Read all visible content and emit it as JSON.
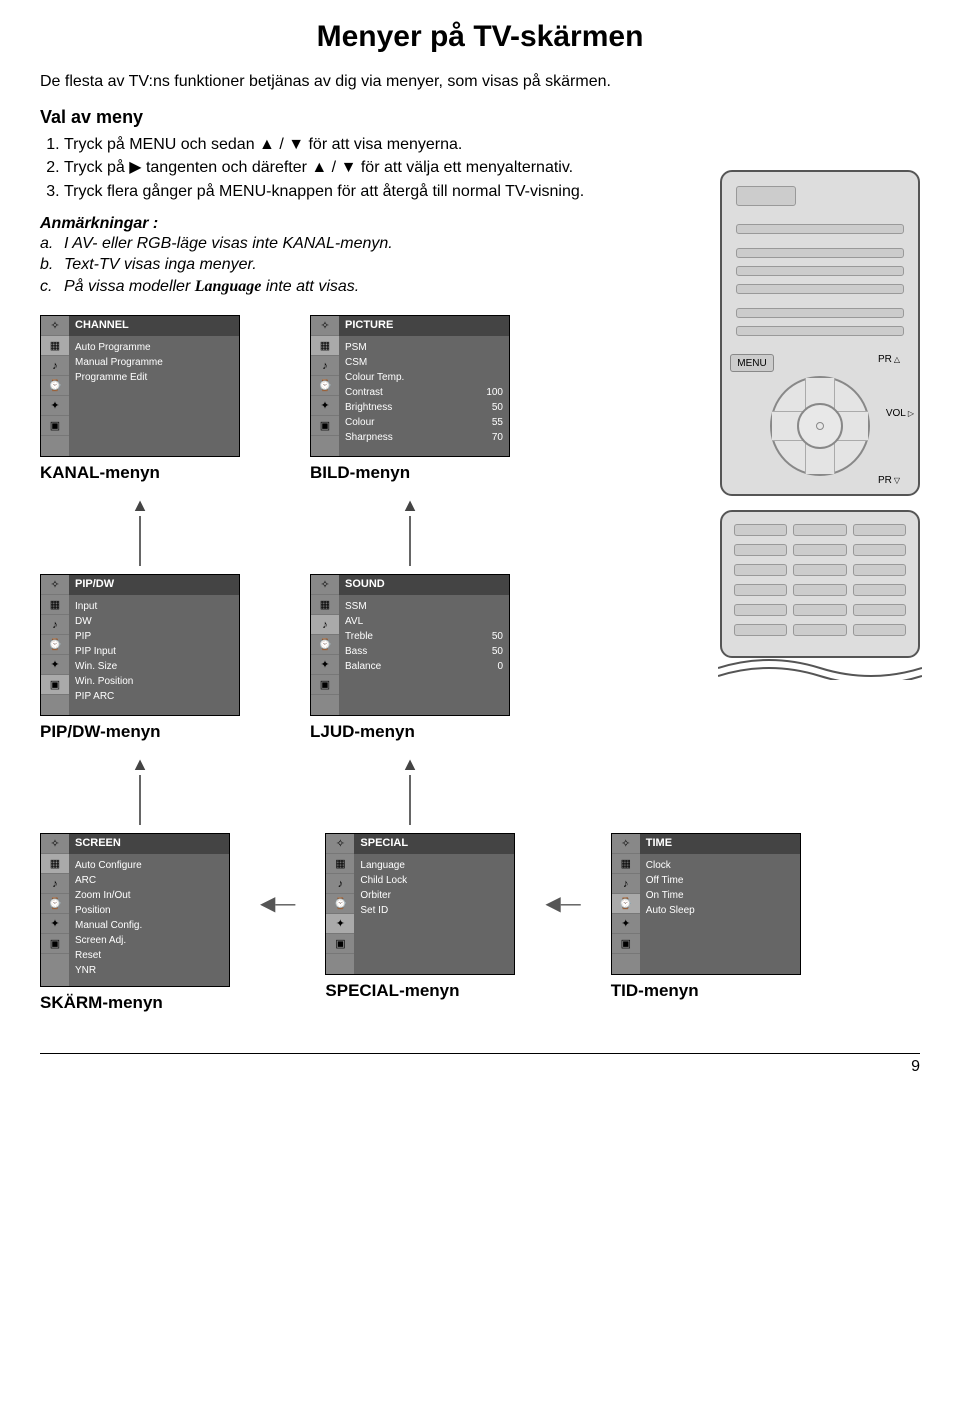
{
  "title": "Menyer på TV-skärmen",
  "intro": "De flesta av TV:ns funktioner betjänas av dig via menyer, som visas på skärmen.",
  "section_heading": "Val av meny",
  "steps": [
    "Tryck på MENU och sedan ▲ / ▼ för att visa menyerna.",
    "Tryck på ▶ tangenten och därefter ▲ / ▼ för att välja ett menyalternativ.",
    "Tryck flera gånger på MENU-knappen för att återgå till normal TV-visning."
  ],
  "notes_heading": "Anmärkningar :",
  "notes": [
    {
      "m": "a.",
      "t": "I AV- eller RGB-läge visas inte KANAL-menyn."
    },
    {
      "m": "b.",
      "t": "Text-TV visas inga menyer."
    },
    {
      "m": "c.",
      "t_pre": "På vissa modeller ",
      "t_em": "Language",
      "t_post": " inte att visas."
    }
  ],
  "menus": {
    "channel": {
      "head": "CHANNEL",
      "items": [
        {
          "l": "Auto Programme"
        },
        {
          "l": "Manual Programme"
        },
        {
          "l": "Programme Edit"
        }
      ],
      "name": "KANAL-menyn"
    },
    "picture": {
      "head": "PICTURE",
      "items": [
        {
          "l": "PSM"
        },
        {
          "l": "CSM"
        },
        {
          "l": "Colour Temp."
        },
        {
          "l": "Contrast",
          "v": "100"
        },
        {
          "l": "Brightness",
          "v": "50"
        },
        {
          "l": "Colour",
          "v": "55"
        },
        {
          "l": "Sharpness",
          "v": "70"
        }
      ],
      "name": "BILD-menyn"
    },
    "pipdw": {
      "head": "PIP/DW",
      "items": [
        {
          "l": "Input"
        },
        {
          "l": "DW"
        },
        {
          "l": "PIP"
        },
        {
          "l": "PIP Input"
        },
        {
          "l": "Win. Size"
        },
        {
          "l": "Win. Position"
        },
        {
          "l": "PIP ARC"
        }
      ],
      "name": "PIP/DW-menyn"
    },
    "sound": {
      "head": "SOUND",
      "items": [
        {
          "l": "SSM"
        },
        {
          "l": "AVL"
        },
        {
          "l": "Treble",
          "v": "50"
        },
        {
          "l": "Bass",
          "v": "50"
        },
        {
          "l": "Balance",
          "v": "0"
        }
      ],
      "name": "LJUD-menyn"
    },
    "screen": {
      "head": "SCREEN",
      "items": [
        {
          "l": "Auto Configure"
        },
        {
          "l": "ARC"
        },
        {
          "l": "Zoom In/Out"
        },
        {
          "l": "Position"
        },
        {
          "l": "Manual Config."
        },
        {
          "l": "Screen Adj."
        },
        {
          "l": "Reset"
        },
        {
          "l": "YNR"
        }
      ],
      "name": "SKÄRM-menyn"
    },
    "special": {
      "head": "SPECIAL",
      "items": [
        {
          "l": "Language"
        },
        {
          "l": "Child Lock"
        },
        {
          "l": "Orbiter"
        },
        {
          "l": "Set ID"
        }
      ],
      "name": "SPECIAL-menyn"
    },
    "time": {
      "head": "TIME",
      "items": [
        {
          "l": "Clock"
        },
        {
          "l": "Off Time"
        },
        {
          "l": "On Time"
        },
        {
          "l": "Auto Sleep"
        }
      ],
      "name": "TID-menyn"
    }
  },
  "remote": {
    "menu": "MENU",
    "pr": "PR",
    "vol": "VOL"
  },
  "icon_glyphs": [
    "✧",
    "▦",
    "♪",
    "⌚",
    "✦",
    "▣"
  ],
  "colors": {
    "menu_head_bg": "#444444",
    "menu_content_bg": "#666666",
    "menu_icon_bg": "#888888",
    "remote_bg": "#dddddd",
    "remote_border": "#555555"
  },
  "page_number": "9"
}
